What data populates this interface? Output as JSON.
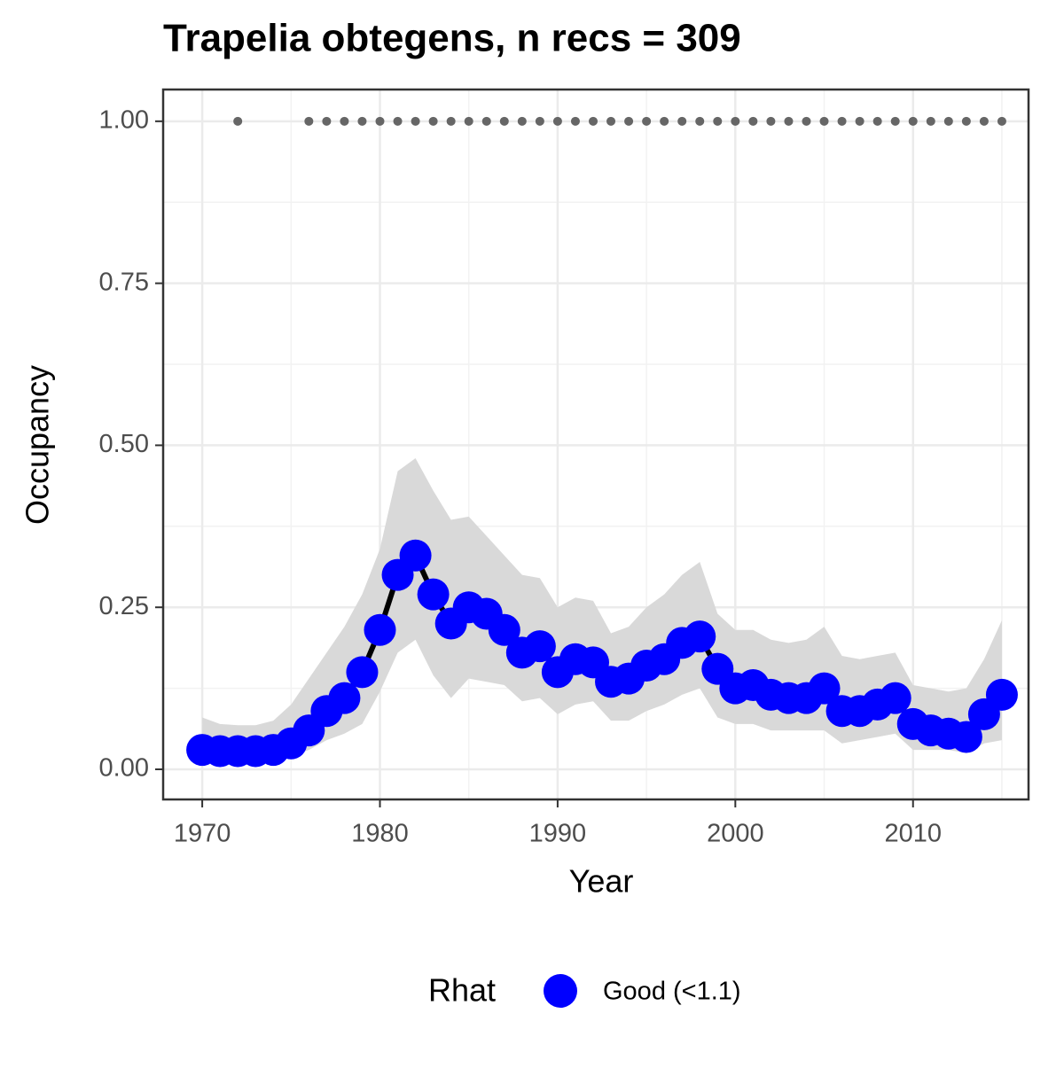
{
  "chart_data": {
    "type": "line",
    "title": "Trapelia obtegens, n recs = 309",
    "x_label": "Year",
    "y_label": "Occupancy",
    "x": [
      1970,
      1971,
      1972,
      1973,
      1974,
      1975,
      1976,
      1977,
      1978,
      1979,
      1980,
      1981,
      1982,
      1983,
      1984,
      1985,
      1986,
      1987,
      1988,
      1989,
      1990,
      1991,
      1992,
      1993,
      1994,
      1995,
      1996,
      1997,
      1998,
      1999,
      2000,
      2001,
      2002,
      2003,
      2004,
      2005,
      2006,
      2007,
      2008,
      2009,
      2010,
      2011,
      2012,
      2013,
      2014,
      2015
    ],
    "series": [
      {
        "name": "Good (<1.1)",
        "color": "#0000ff",
        "line_color": "#000000",
        "values": [
          0.03,
          0.028,
          0.028,
          0.028,
          0.03,
          0.04,
          0.06,
          0.09,
          0.11,
          0.15,
          0.215,
          0.3,
          0.33,
          0.27,
          0.225,
          0.25,
          0.24,
          0.215,
          0.18,
          0.19,
          0.15,
          0.17,
          0.165,
          0.135,
          0.14,
          0.16,
          0.17,
          0.195,
          0.205,
          0.155,
          0.125,
          0.13,
          0.115,
          0.11,
          0.11,
          0.125,
          0.09,
          0.09,
          0.1,
          0.11,
          0.07,
          0.06,
          0.055,
          0.05,
          0.085,
          0.115
        ]
      }
    ],
    "lower": [
      0.01,
      0.01,
      0.01,
      0.01,
      0.012,
      0.02,
      0.03,
      0.045,
      0.055,
      0.07,
      0.12,
      0.18,
      0.2,
      0.145,
      0.11,
      0.14,
      0.135,
      0.13,
      0.105,
      0.11,
      0.085,
      0.1,
      0.105,
      0.075,
      0.075,
      0.09,
      0.1,
      0.115,
      0.125,
      0.08,
      0.07,
      0.07,
      0.06,
      0.06,
      0.06,
      0.06,
      0.04,
      0.045,
      0.05,
      0.055,
      0.03,
      0.03,
      0.03,
      0.025,
      0.04,
      0.045
    ],
    "upper": [
      0.08,
      0.07,
      0.068,
      0.068,
      0.075,
      0.1,
      0.14,
      0.18,
      0.22,
      0.27,
      0.34,
      0.46,
      0.48,
      0.43,
      0.385,
      0.39,
      0.36,
      0.33,
      0.3,
      0.295,
      0.25,
      0.265,
      0.26,
      0.21,
      0.22,
      0.25,
      0.27,
      0.3,
      0.32,
      0.24,
      0.215,
      0.215,
      0.2,
      0.195,
      0.2,
      0.22,
      0.175,
      0.17,
      0.175,
      0.18,
      0.13,
      0.125,
      0.12,
      0.125,
      0.17,
      0.23
    ],
    "ribbon_color": "#d9d9d9",
    "records": {
      "color": "#666666",
      "x": [
        1972,
        1976,
        1977,
        1978,
        1979,
        1980,
        1981,
        1982,
        1983,
        1984,
        1985,
        1986,
        1987,
        1988,
        1989,
        1990,
        1991,
        1992,
        1993,
        1994,
        1995,
        1996,
        1997,
        1998,
        1999,
        2000,
        2001,
        2002,
        2003,
        2004,
        2005,
        2006,
        2007,
        2008,
        2009,
        2010,
        2011,
        2012,
        2013,
        2014,
        2015
      ],
      "values": [
        1,
        1,
        1,
        1,
        1,
        1,
        1,
        1,
        1,
        1,
        1,
        1,
        1,
        1,
        1,
        1,
        1,
        1,
        1,
        1,
        1,
        1,
        1,
        1,
        1,
        1,
        1,
        1,
        1,
        1,
        1,
        1,
        1,
        1,
        1,
        1,
        1,
        1,
        1,
        1,
        1
      ]
    },
    "xlim": [
      1967.8,
      2016.5
    ],
    "ylim": [
      -0.0465,
      1.049
    ],
    "xticks": [
      1970,
      1980,
      1990,
      2000,
      2010
    ],
    "yticks": [
      {
        "value": 0,
        "label": "0.00"
      },
      {
        "value": 0.25,
        "label": "0.25"
      },
      {
        "value": 0.5,
        "label": "0.50"
      },
      {
        "value": 0.75,
        "label": "0.75"
      },
      {
        "value": 1,
        "label": "1.00"
      }
    ],
    "grid": true,
    "legend_title": "Rhat",
    "legend_position": "bottom"
  }
}
